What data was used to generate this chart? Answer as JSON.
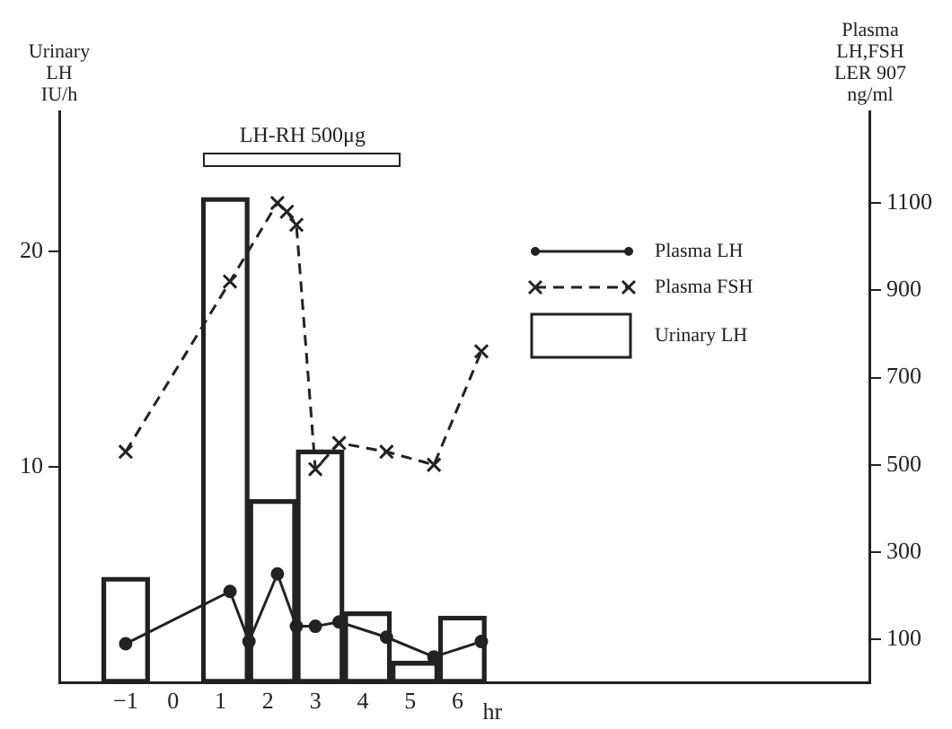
{
  "chart_data": {
    "type": "bar",
    "ylabel": "Urinary\nLH\nIU/h",
    "y2label": "Plasma\nLH,FSH\nLER 907\nng/ml",
    "xlabel": "hr",
    "xlim": [
      -2.4,
      14.7
    ],
    "xticks": [
      -1,
      0,
      1,
      2,
      3,
      4,
      5,
      6
    ],
    "ylim": [
      0,
      26.5
    ],
    "yticks": [
      10,
      20
    ],
    "y2lim": [
      0,
      1310
    ],
    "y2ticks": [
      100,
      300,
      500,
      700,
      900,
      1100
    ],
    "legend": "top right",
    "grid": false,
    "annotations": [
      "LH-RH 500μg"
    ],
    "series": [
      {
        "name": "Plasma LH",
        "type": "line",
        "axis": "y2",
        "marker": "circle",
        "line_style": "solid",
        "color": "#222222",
        "x": [
          -1,
          1.2,
          1.6,
          2.2,
          2.6,
          3,
          3.5,
          4.5,
          5.5,
          6.5
        ],
        "values": [
          90,
          210,
          95,
          250,
          130,
          130,
          140,
          105,
          60,
          95
        ]
      },
      {
        "name": "Plasma FSH",
        "type": "line",
        "axis": "y2",
        "marker": "cross",
        "line_style": "dashed",
        "color": "#222222",
        "x": [
          -1,
          1.2,
          2.2,
          2.4,
          2.6,
          3,
          3.5,
          4.5,
          5.5,
          6.5
        ],
        "values": [
          530,
          920,
          1100,
          1080,
          1050,
          490,
          550,
          530,
          500,
          760
        ]
      },
      {
        "name": "Urinary LH",
        "color": "#222222",
        "x": [
          -1,
          1.1,
          2.1,
          3.1,
          4.1,
          5.1,
          6.1
        ],
        "values": [
          4.9,
          22.5,
          8.5,
          10.8,
          3.3,
          1.0,
          3.1
        ]
      }
    ]
  }
}
